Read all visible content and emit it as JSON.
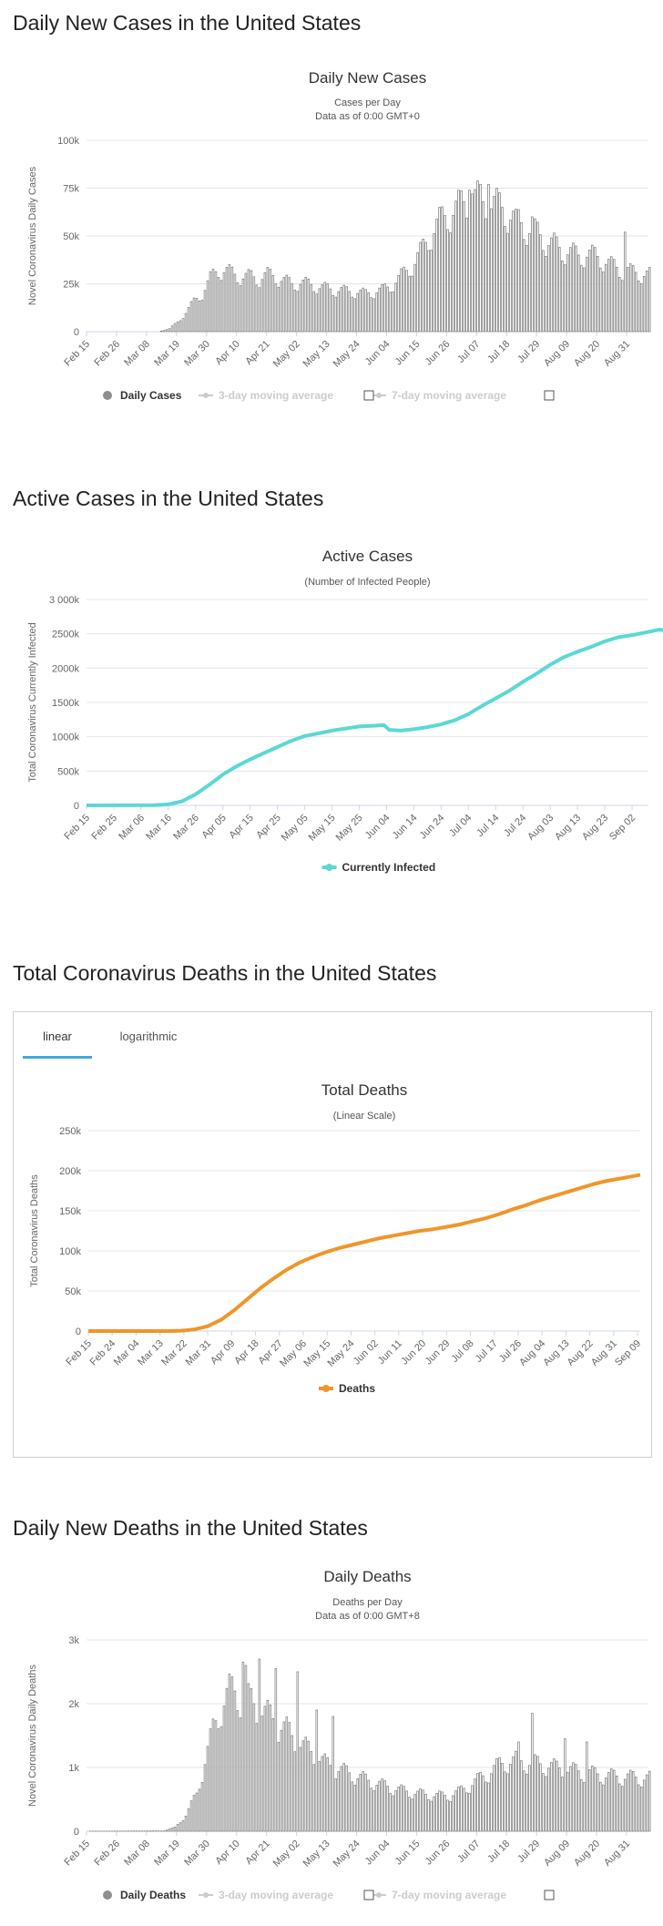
{
  "sections": {
    "daily_cases_title": "Daily New Cases in the United States",
    "active_cases_title": "Active Cases in the United States",
    "total_deaths_title": "Total Coronavirus Deaths in the United States",
    "daily_deaths_title": "Daily New Deaths in the United States"
  },
  "deaths_tabs": {
    "linear": "linear",
    "logarithmic": "logarithmic",
    "active": "linear"
  },
  "colors": {
    "bars": "#8e8e8e",
    "active": "#5bd8d4",
    "deaths": "#f0952a",
    "grid": "#e6e6e6",
    "tab_underline": "#3fa9dd"
  },
  "chart_data": [
    {
      "type": "bar",
      "title": "Daily New Cases",
      "subtitle": [
        "Cases per Day",
        "Data as of 0:00 GMT+0"
      ],
      "ylabel": "Novel Coronavirus Daily Cases",
      "ylim": [
        0,
        100000
      ],
      "yticks": [
        0,
        25000,
        50000,
        75000,
        100000
      ],
      "ytick_labels": [
        "0",
        "25k",
        "50k",
        "75k",
        "100k"
      ],
      "start_date": "2020-02-15",
      "end_date": "2020-09-08",
      "xtick_labels": [
        "Feb 15",
        "Feb 26",
        "Mar 08",
        "Mar 19",
        "Mar 30",
        "Apr 10",
        "Apr 21",
        "May 02",
        "May 13",
        "May 24",
        "Jun 04",
        "Jun 15",
        "Jun 26",
        "Jul 07",
        "Jul 18",
        "Jul 29",
        "Aug 09",
        "Aug 20",
        "Aug 31"
      ],
      "legend": [
        {
          "name": "Daily Cases",
          "active": true
        },
        {
          "name": "3-day moving average",
          "active": false
        },
        {
          "name": "7-day moving average",
          "active": false
        }
      ],
      "anchors": [
        [
          0,
          0
        ],
        [
          26,
          0
        ],
        [
          30,
          1500
        ],
        [
          33,
          5000
        ],
        [
          36,
          10000
        ],
        [
          39,
          16000
        ],
        [
          42,
          20000
        ],
        [
          45,
          28000
        ],
        [
          48,
          33000
        ],
        [
          51,
          32000
        ],
        [
          54,
          30000
        ],
        [
          57,
          29000
        ],
        [
          60,
          29000
        ],
        [
          63,
          28000
        ],
        [
          66,
          30000
        ],
        [
          69,
          29000
        ],
        [
          72,
          27000
        ],
        [
          75,
          25000
        ],
        [
          78,
          26000
        ],
        [
          81,
          25000
        ],
        [
          84,
          24000
        ],
        [
          87,
          23000
        ],
        [
          90,
          22000
        ],
        [
          93,
          22000
        ],
        [
          96,
          21000
        ],
        [
          99,
          21000
        ],
        [
          102,
          20000
        ],
        [
          105,
          21000
        ],
        [
          108,
          22000
        ],
        [
          111,
          24000
        ],
        [
          114,
          28000
        ],
        [
          117,
          32000
        ],
        [
          120,
          37000
        ],
        [
          123,
          44000
        ],
        [
          126,
          52000
        ],
        [
          129,
          58000
        ],
        [
          132,
          62000
        ],
        [
          135,
          65000
        ],
        [
          138,
          68000
        ],
        [
          141,
          71000
        ],
        [
          144,
          70000
        ],
        [
          147,
          68000
        ],
        [
          150,
          67000
        ],
        [
          153,
          64000
        ],
        [
          156,
          60000
        ],
        [
          159,
          57000
        ],
        [
          162,
          54000
        ],
        [
          165,
          52000
        ],
        [
          168,
          48000
        ],
        [
          171,
          46000
        ],
        [
          174,
          43000
        ],
        [
          177,
          42000
        ],
        [
          180,
          40000
        ],
        [
          183,
          41000
        ],
        [
          186,
          40000
        ],
        [
          189,
          38000
        ],
        [
          192,
          35000
        ],
        [
          195,
          33000
        ],
        [
          201,
          31000
        ],
        [
          206,
          30000
        ]
      ],
      "peaks": [
        [
          140,
          74000
        ],
        [
          141,
          72000
        ],
        [
          147,
          77000
        ],
        [
          145,
          68000
        ],
        [
          157,
          64000
        ],
        [
          163,
          60000
        ],
        [
          177,
          44000
        ],
        [
          197,
          52000
        ]
      ]
    },
    {
      "type": "line",
      "title": "Active Cases",
      "subtitle": [
        "(Number of Infected People)"
      ],
      "ylabel": "Total Coronavirus Currently Infected",
      "ylim": [
        0,
        3000000
      ],
      "yticks": [
        0,
        500000,
        1000000,
        1500000,
        2000000,
        2500000,
        3000000
      ],
      "ytick_labels": [
        "0",
        "500k",
        "1000k",
        "1500k",
        "2000k",
        "2500k",
        "3 000k"
      ],
      "start_date": "2020-02-15",
      "end_date": "2020-09-08",
      "xtick_labels": [
        "Feb 15",
        "Feb 25",
        "Mar 06",
        "Mar 16",
        "Mar 26",
        "Apr 05",
        "Apr 15",
        "Apr 25",
        "May 05",
        "May 15",
        "May 25",
        "Jun 04",
        "Jun 14",
        "Jun 24",
        "Jul 04",
        "Jul 14",
        "Jul 24",
        "Aug 03",
        "Aug 13",
        "Aug 23",
        "Sep 02"
      ],
      "legend": [
        {
          "name": "Currently Infected",
          "active": true
        }
      ],
      "series": [
        {
          "name": "Currently Infected",
          "points": [
            [
              0,
              0
            ],
            [
              25,
              2000
            ],
            [
              30,
              15000
            ],
            [
              35,
              60000
            ],
            [
              40,
              160000
            ],
            [
              45,
              300000
            ],
            [
              50,
              450000
            ],
            [
              55,
              570000
            ],
            [
              60,
              670000
            ],
            [
              65,
              760000
            ],
            [
              70,
              850000
            ],
            [
              75,
              940000
            ],
            [
              80,
              1010000
            ],
            [
              85,
              1050000
            ],
            [
              90,
              1090000
            ],
            [
              95,
              1120000
            ],
            [
              100,
              1150000
            ],
            [
              105,
              1160000
            ],
            [
              109,
              1170000
            ],
            [
              111,
              1100000
            ],
            [
              115,
              1090000
            ],
            [
              120,
              1110000
            ],
            [
              125,
              1140000
            ],
            [
              130,
              1180000
            ],
            [
              135,
              1240000
            ],
            [
              140,
              1330000
            ],
            [
              145,
              1450000
            ],
            [
              150,
              1560000
            ],
            [
              155,
              1670000
            ],
            [
              160,
              1800000
            ],
            [
              165,
              1920000
            ],
            [
              170,
              2050000
            ],
            [
              175,
              2160000
            ],
            [
              180,
              2240000
            ],
            [
              185,
              2310000
            ],
            [
              190,
              2390000
            ],
            [
              195,
              2450000
            ],
            [
              200,
              2480000
            ],
            [
              205,
              2520000
            ],
            [
              210,
              2560000
            ],
            [
              214,
              2540000
            ],
            [
              217,
              2510000
            ]
          ]
        }
      ]
    },
    {
      "type": "line",
      "title": "Total Deaths",
      "subtitle": [
        "(Linear Scale)"
      ],
      "ylabel": "Total Coronavirus Deaths",
      "ylim": [
        0,
        250000
      ],
      "yticks": [
        0,
        50000,
        100000,
        150000,
        200000,
        250000
      ],
      "ytick_labels": [
        "0",
        "50k",
        "100k",
        "150k",
        "200k",
        "250k"
      ],
      "start_date": "2020-02-15",
      "end_date": "2020-09-10",
      "xtick_labels": [
        "Feb 15",
        "Feb 24",
        "Mar 04",
        "Mar 13",
        "Mar 22",
        "Mar 31",
        "Apr 09",
        "Apr 18",
        "Apr 27",
        "May 06",
        "May 15",
        "May 24",
        "Jun 02",
        "Jun 11",
        "Jun 20",
        "Jun 29",
        "Jul 08",
        "Jul 17",
        "Jul 26",
        "Aug 04",
        "Aug 13",
        "Aug 22",
        "Aug 31",
        "Sep 09"
      ],
      "legend": [
        {
          "name": "Deaths",
          "active": true
        }
      ],
      "series": [
        {
          "name": "Deaths",
          "points": [
            [
              0,
              0
            ],
            [
              30,
              50
            ],
            [
              35,
              500
            ],
            [
              40,
              2000
            ],
            [
              45,
              6000
            ],
            [
              50,
              14000
            ],
            [
              55,
              26000
            ],
            [
              60,
              40000
            ],
            [
              65,
              54000
            ],
            [
              70,
              66000
            ],
            [
              75,
              77000
            ],
            [
              80,
              86000
            ],
            [
              85,
              93000
            ],
            [
              90,
              99000
            ],
            [
              95,
              104000
            ],
            [
              100,
              108000
            ],
            [
              105,
              112000
            ],
            [
              110,
              116000
            ],
            [
              115,
              119000
            ],
            [
              120,
              122000
            ],
            [
              125,
              125000
            ],
            [
              130,
              127000
            ],
            [
              135,
              130000
            ],
            [
              140,
              133000
            ],
            [
              145,
              137000
            ],
            [
              150,
              141000
            ],
            [
              155,
              146000
            ],
            [
              160,
              152000
            ],
            [
              165,
              157000
            ],
            [
              170,
              163000
            ],
            [
              175,
              168000
            ],
            [
              180,
              173000
            ],
            [
              185,
              178000
            ],
            [
              190,
              183000
            ],
            [
              195,
              187000
            ],
            [
              200,
              190000
            ],
            [
              205,
              193000
            ],
            [
              208,
              195000
            ]
          ]
        }
      ]
    },
    {
      "type": "bar",
      "title": "Daily Deaths",
      "subtitle": [
        "Deaths per Day",
        "Data as of 0:00 GMT+8"
      ],
      "ylabel": "Novel Coronavirus Daily Deaths",
      "ylim": [
        0,
        3000
      ],
      "yticks": [
        0,
        1000,
        2000,
        3000
      ],
      "ytick_labels": [
        "0",
        "1k",
        "2k",
        "3k"
      ],
      "start_date": "2020-02-15",
      "end_date": "2020-09-08",
      "xtick_labels": [
        "Feb 15",
        "Feb 26",
        "Mar 08",
        "Mar 19",
        "Mar 30",
        "Apr 10",
        "Apr 21",
        "May 02",
        "May 13",
        "May 24",
        "Jun 04",
        "Jun 15",
        "Jun 26",
        "Jul 07",
        "Jul 18",
        "Jul 29",
        "Aug 09",
        "Aug 20",
        "Aug 31"
      ],
      "legend": [
        {
          "name": "Daily Deaths",
          "active": true
        },
        {
          "name": "3-day moving average",
          "active": false
        },
        {
          "name": "7-day moving average",
          "active": false
        }
      ],
      "anchors": [
        [
          0,
          0
        ],
        [
          28,
          5
        ],
        [
          32,
          60
        ],
        [
          36,
          250
        ],
        [
          40,
          600
        ],
        [
          43,
          1100
        ],
        [
          46,
          1600
        ],
        [
          49,
          2000
        ],
        [
          52,
          2200
        ],
        [
          55,
          2200
        ],
        [
          58,
          2100
        ],
        [
          61,
          2000
        ],
        [
          64,
          1900
        ],
        [
          67,
          1800
        ],
        [
          70,
          1700
        ],
        [
          73,
          1600
        ],
        [
          76,
          1450
        ],
        [
          79,
          1350
        ],
        [
          82,
          1250
        ],
        [
          85,
          1150
        ],
        [
          88,
          1050
        ],
        [
          91,
          1000
        ],
        [
          94,
          950
        ],
        [
          97,
          900
        ],
        [
          100,
          850
        ],
        [
          103,
          800
        ],
        [
          106,
          760
        ],
        [
          109,
          720
        ],
        [
          112,
          680
        ],
        [
          115,
          650
        ],
        [
          118,
          620
        ],
        [
          121,
          600
        ],
        [
          124,
          580
        ],
        [
          127,
          570
        ],
        [
          130,
          560
        ],
        [
          133,
          570
        ],
        [
          136,
          620
        ],
        [
          139,
          700
        ],
        [
          142,
          780
        ],
        [
          145,
          870
        ],
        [
          148,
          950
        ],
        [
          151,
          1050
        ],
        [
          154,
          1100
        ],
        [
          157,
          1120
        ],
        [
          160,
          1100
        ],
        [
          163,
          1080
        ],
        [
          166,
          1060
        ],
        [
          169,
          1040
        ],
        [
          172,
          1000
        ],
        [
          175,
          980
        ],
        [
          178,
          960
        ],
        [
          181,
          940
        ],
        [
          184,
          920
        ],
        [
          187,
          900
        ],
        [
          190,
          880
        ],
        [
          193,
          870
        ],
        [
          196,
          860
        ],
        [
          201,
          850
        ],
        [
          206,
          840
        ]
      ],
      "peaks": [
        [
          57,
          2650
        ],
        [
          63,
          2700
        ],
        [
          58,
          2600
        ],
        [
          69,
          2550
        ],
        [
          77,
          2500
        ],
        [
          84,
          1900
        ],
        [
          90,
          1800
        ],
        [
          163,
          1850
        ],
        [
          158,
          1400
        ],
        [
          175,
          1450
        ],
        [
          183,
          1400
        ]
      ]
    }
  ]
}
